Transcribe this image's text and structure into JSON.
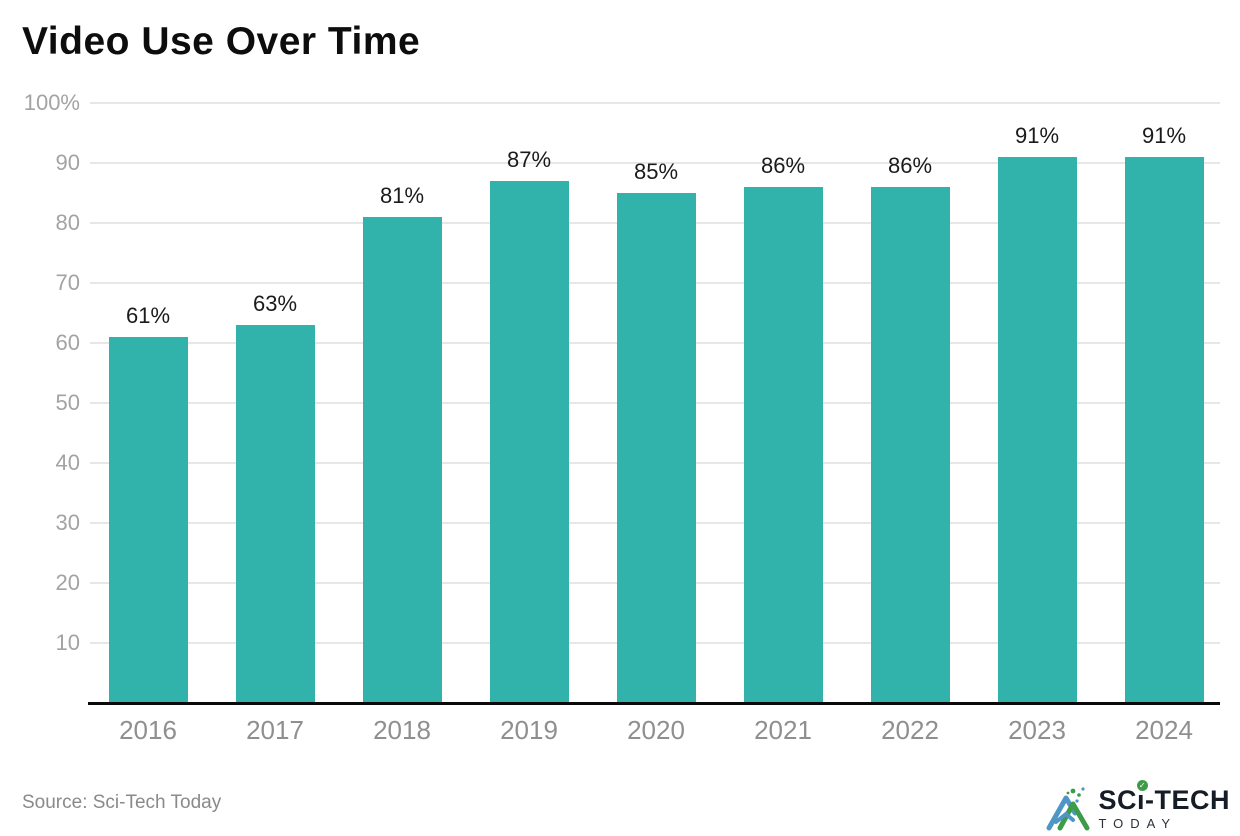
{
  "title": "Video Use Over Time",
  "source_note": "Source: Sci-Tech Today",
  "footer": {
    "logo": {
      "part1": "SC",
      "i_char": "ı",
      "check": "✓",
      "part2": "-TECH",
      "sub": "TODAY"
    }
  },
  "colors": {
    "bar": "#31b3ab",
    "gridline": "#e7e7e7",
    "axis_line": "#0a0a0a",
    "tick_text": "#a3a3a3",
    "year_text": "#8f8f8f",
    "value_text": "#1b1b1b",
    "title_text": "#0d0d0d",
    "logo_green": "#3e9b47",
    "logo_blue": "#4e96c5"
  },
  "chart_data": {
    "type": "bar",
    "title": "Video Use Over Time",
    "categories": [
      "2016",
      "2017",
      "2018",
      "2019",
      "2020",
      "2021",
      "2022",
      "2023",
      "2024"
    ],
    "values": [
      61,
      63,
      81,
      87,
      85,
      86,
      86,
      91,
      91
    ],
    "bar_labels": [
      "61%",
      "63%",
      "81%",
      "87%",
      "85%",
      "86%",
      "86%",
      "91%",
      "91%"
    ],
    "xlabel": "",
    "ylabel": "",
    "ylim": [
      0,
      100
    ],
    "grid": true,
    "legend": false,
    "bar_color": "#31b3ab",
    "yticks": [
      {
        "value": 100,
        "label": "100%"
      },
      {
        "value": 90,
        "label": "90"
      },
      {
        "value": 80,
        "label": "80"
      },
      {
        "value": 70,
        "label": "70"
      },
      {
        "value": 60,
        "label": "60"
      },
      {
        "value": 50,
        "label": "50"
      },
      {
        "value": 40,
        "label": "40"
      },
      {
        "value": 30,
        "label": "30"
      },
      {
        "value": 20,
        "label": "20"
      },
      {
        "value": 10,
        "label": "10"
      }
    ]
  }
}
